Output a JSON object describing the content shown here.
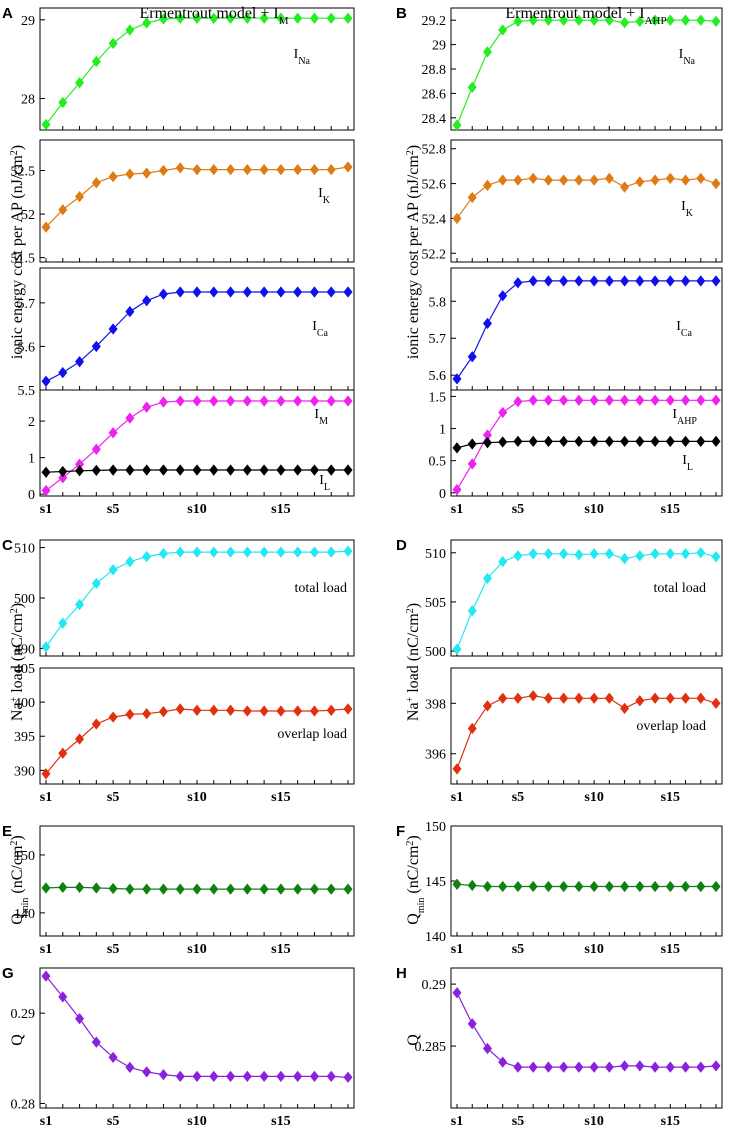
{
  "figure": {
    "titles": {
      "left": {
        "main": "Ermentrout model + I",
        "sub": "M"
      },
      "right": {
        "main": "Ermentrout model + I",
        "sub": "AHP"
      }
    },
    "ylabels": {
      "energy": {
        "parts": [
          {
            "t": "ionic energy cost per AP (nJ/cm"
          },
          {
            "t": "2",
            "sup": true
          },
          {
            "t": ")"
          }
        ]
      },
      "naload": {
        "parts": [
          {
            "t": "Na"
          },
          {
            "t": "+",
            "sup": true
          },
          {
            "t": " load (nC/cm"
          },
          {
            "t": "2",
            "sup": true
          },
          {
            "t": ")"
          }
        ]
      },
      "qmin": {
        "parts": [
          {
            "t": "Q"
          },
          {
            "t": "min",
            "sub": true
          },
          {
            "t": " (nC/cm"
          },
          {
            "t": "2",
            "sup": true
          },
          {
            "t": ")"
          }
        ]
      },
      "q": {
        "parts": [
          {
            "t": "Q"
          }
        ]
      }
    }
  },
  "chart_data": [
    {
      "id": "A1",
      "panel_letter": "A",
      "type": "line",
      "ylim": [
        27.6,
        29.15
      ],
      "yticks": [
        28,
        29
      ],
      "series": [
        {
          "name": "I_Na",
          "label": "I",
          "sub": "Na",
          "color": "#22ee22",
          "values": [
            27.67,
            27.95,
            28.2,
            28.47,
            28.7,
            28.87,
            28.96,
            29.01,
            29.02,
            29.02,
            29.02,
            29.02,
            29.02,
            29.02,
            29.02,
            29.02,
            29.02,
            29.02,
            29.02
          ]
        }
      ]
    },
    {
      "id": "A2",
      "type": "line",
      "ylim": [
        51.45,
        52.85
      ],
      "yticks": [
        51.5,
        52,
        52.5
      ],
      "series": [
        {
          "name": "I_K",
          "label": "I",
          "sub": "K",
          "color": "#e07a14",
          "values": [
            51.85,
            52.05,
            52.2,
            52.36,
            52.43,
            52.46,
            52.47,
            52.5,
            52.53,
            52.51,
            52.51,
            52.51,
            52.51,
            52.51,
            52.51,
            52.51,
            52.51,
            52.51,
            52.54
          ]
        }
      ]
    },
    {
      "id": "A3",
      "type": "line",
      "ylim": [
        5.5,
        5.78
      ],
      "yticks": [
        5.5,
        5.6,
        5.7
      ],
      "xticklabels": [],
      "series": [
        {
          "name": "I_Ca",
          "label": "I",
          "sub": "Ca",
          "color": "#1010ee",
          "values": [
            5.52,
            5.54,
            5.565,
            5.6,
            5.64,
            5.68,
            5.705,
            5.72,
            5.725,
            5.725,
            5.725,
            5.725,
            5.725,
            5.725,
            5.725,
            5.725,
            5.725,
            5.725,
            5.725
          ]
        }
      ]
    },
    {
      "id": "A4",
      "type": "line",
      "ylim": [
        -0.05,
        2.85
      ],
      "yticks": [
        0,
        1,
        2
      ],
      "xticklabels": [
        "s1",
        "s5",
        "s10",
        "s15"
      ],
      "series": [
        {
          "name": "I_M",
          "label": "I",
          "sub": "M",
          "color": "#ee22ee",
          "values": [
            0.1,
            0.45,
            0.82,
            1.23,
            1.68,
            2.08,
            2.38,
            2.52,
            2.55,
            2.55,
            2.55,
            2.55,
            2.55,
            2.55,
            2.55,
            2.55,
            2.55,
            2.55,
            2.55
          ]
        },
        {
          "name": "I_L",
          "label": "I",
          "sub": "L",
          "color": "#000000",
          "values": [
            0.6,
            0.62,
            0.64,
            0.65,
            0.66,
            0.66,
            0.66,
            0.66,
            0.66,
            0.66,
            0.66,
            0.66,
            0.66,
            0.66,
            0.66,
            0.66,
            0.66,
            0.66,
            0.66
          ]
        }
      ]
    },
    {
      "id": "B1",
      "panel_letter": "B",
      "type": "line",
      "ylim": [
        28.3,
        29.3
      ],
      "yticks": [
        28.4,
        28.6,
        28.8,
        29,
        29.2
      ],
      "series": [
        {
          "name": "I_Na",
          "label": "I",
          "sub": "Na",
          "color": "#22ee22",
          "values": [
            28.34,
            28.65,
            28.94,
            29.12,
            29.19,
            29.2,
            29.2,
            29.2,
            29.2,
            29.2,
            29.2,
            29.18,
            29.19,
            29.2,
            29.2,
            29.2,
            29.2,
            29.19
          ]
        }
      ]
    },
    {
      "id": "B2",
      "type": "line",
      "ylim": [
        52.15,
        52.85
      ],
      "yticks": [
        52.2,
        52.4,
        52.6,
        52.8
      ],
      "series": [
        {
          "name": "I_K",
          "label": "I",
          "sub": "K",
          "color": "#e07a14",
          "values": [
            52.4,
            52.52,
            52.59,
            52.62,
            52.62,
            52.63,
            52.62,
            52.62,
            52.62,
            52.62,
            52.63,
            52.58,
            52.61,
            52.62,
            52.63,
            52.62,
            52.63,
            52.6
          ]
        }
      ]
    },
    {
      "id": "B3",
      "type": "line",
      "ylim": [
        5.56,
        5.89
      ],
      "yticks": [
        5.6,
        5.7,
        5.8
      ],
      "series": [
        {
          "name": "I_Ca",
          "label": "I",
          "sub": "Ca",
          "color": "#1010ee",
          "values": [
            5.59,
            5.65,
            5.74,
            5.815,
            5.85,
            5.855,
            5.855,
            5.855,
            5.855,
            5.855,
            5.855,
            5.855,
            5.855,
            5.855,
            5.855,
            5.855,
            5.855,
            5.855
          ]
        }
      ]
    },
    {
      "id": "B4",
      "type": "line",
      "ylim": [
        -0.05,
        1.6
      ],
      "yticks": [
        0,
        0.5,
        1,
        1.5
      ],
      "xticklabels": [
        "s1",
        "s5",
        "s10",
        "s15"
      ],
      "series": [
        {
          "name": "I_AHP",
          "label": "I",
          "sub": "AHP",
          "color": "#ee22ee",
          "values": [
            0.05,
            0.45,
            0.9,
            1.25,
            1.42,
            1.44,
            1.44,
            1.44,
            1.44,
            1.44,
            1.44,
            1.44,
            1.44,
            1.44,
            1.44,
            1.44,
            1.44,
            1.44
          ]
        },
        {
          "name": "I_L",
          "label": "I",
          "sub": "L",
          "color": "#000000",
          "values": [
            0.7,
            0.76,
            0.78,
            0.79,
            0.8,
            0.8,
            0.8,
            0.8,
            0.8,
            0.8,
            0.8,
            0.8,
            0.8,
            0.8,
            0.8,
            0.8,
            0.8,
            0.8
          ]
        }
      ]
    },
    {
      "id": "C1",
      "panel_letter": "C",
      "type": "line",
      "ylim": [
        488.5,
        511.5
      ],
      "yticks": [
        490,
        500,
        510
      ],
      "series": [
        {
          "name": "total load",
          "label": "total load",
          "color": "#22e8f0",
          "values": [
            490.3,
            495,
            498.7,
            502.9,
            505.6,
            507.2,
            508.2,
            508.8,
            509.1,
            509.1,
            509.1,
            509.1,
            509.1,
            509.1,
            509.1,
            509.1,
            509.1,
            509.1,
            509.3
          ]
        }
      ]
    },
    {
      "id": "C2",
      "type": "line",
      "ylim": [
        388,
        405
      ],
      "yticks": [
        390,
        395,
        400,
        405
      ],
      "xticklabels": [
        "s1",
        "s5",
        "s10",
        "s15"
      ],
      "series": [
        {
          "name": "overlap load",
          "label": "overlap load",
          "color": "#e03010",
          "values": [
            389.5,
            392.5,
            394.6,
            396.8,
            397.8,
            398.2,
            398.3,
            398.6,
            399,
            398.8,
            398.8,
            398.8,
            398.7,
            398.7,
            398.7,
            398.7,
            398.7,
            398.8,
            399
          ]
        }
      ]
    },
    {
      "id": "D1",
      "panel_letter": "D",
      "type": "line",
      "ylim": [
        499.5,
        511.3
      ],
      "yticks": [
        500,
        505,
        510
      ],
      "series": [
        {
          "name": "total load",
          "label": "total load",
          "color": "#22e8f0",
          "values": [
            500.2,
            504.1,
            507.4,
            509.1,
            509.7,
            509.9,
            509.9,
            509.9,
            509.8,
            509.9,
            509.9,
            509.4,
            509.7,
            509.9,
            509.9,
            509.9,
            510,
            509.6
          ]
        }
      ]
    },
    {
      "id": "D2",
      "type": "line",
      "ylim": [
        394.8,
        399.4
      ],
      "yticks": [
        396,
        398
      ],
      "xticklabels": [
        "s1",
        "s5",
        "s10",
        "s15"
      ],
      "series": [
        {
          "name": "overlap load",
          "label": "overlap load",
          "color": "#e03010",
          "values": [
            395.4,
            397,
            397.9,
            398.2,
            398.2,
            398.3,
            398.2,
            398.2,
            398.2,
            398.2,
            398.2,
            397.8,
            398.1,
            398.2,
            398.2,
            398.2,
            398.2,
            398
          ]
        }
      ]
    },
    {
      "id": "E",
      "panel_letter": "E",
      "type": "line",
      "ylim": [
        136,
        155
      ],
      "yticks": [
        140,
        150
      ],
      "xticklabels": [
        "s1",
        "s5",
        "s10",
        "s15"
      ],
      "series": [
        {
          "name": "Qmin",
          "color": "#108010",
          "values": [
            144.3,
            144.4,
            144.4,
            144.3,
            144.2,
            144.1,
            144.1,
            144.1,
            144.1,
            144.1,
            144.1,
            144.1,
            144.1,
            144.1,
            144.1,
            144.1,
            144.1,
            144.1,
            144.1
          ]
        }
      ]
    },
    {
      "id": "F",
      "panel_letter": "F",
      "type": "line",
      "ylim": [
        140,
        150
      ],
      "yticks": [
        140,
        145,
        150
      ],
      "xticklabels": [
        "s1",
        "s5",
        "s10",
        "s15"
      ],
      "series": [
        {
          "name": "Qmin",
          "color": "#108010",
          "values": [
            144.7,
            144.6,
            144.5,
            144.5,
            144.5,
            144.5,
            144.5,
            144.5,
            144.5,
            144.5,
            144.5,
            144.5,
            144.5,
            144.5,
            144.5,
            144.5,
            144.5,
            144.5
          ]
        }
      ]
    },
    {
      "id": "G",
      "panel_letter": "G",
      "type": "line",
      "ylim": [
        0.2795,
        0.295
      ],
      "yticks": [
        0.28,
        0.29
      ],
      "xticklabels": [
        "s1",
        "s5",
        "s10",
        "s15"
      ],
      "series": [
        {
          "name": "Q",
          "color": "#8822dd",
          "values": [
            0.2941,
            0.2918,
            0.2894,
            0.2868,
            0.2851,
            0.284,
            0.2835,
            0.2832,
            0.283,
            0.283,
            0.283,
            0.283,
            0.283,
            0.283,
            0.283,
            0.283,
            0.283,
            0.283,
            0.2829
          ]
        }
      ]
    },
    {
      "id": "H",
      "panel_letter": "H",
      "type": "line",
      "ylim": [
        0.28,
        0.2913
      ],
      "yticks": [
        0.285,
        0.29
      ],
      "xticklabels": [
        "s1",
        "s5",
        "s10",
        "s15"
      ],
      "series": [
        {
          "name": "Q",
          "color": "#8822dd",
          "values": [
            0.2893,
            0.2868,
            0.2848,
            0.2837,
            0.2833,
            0.2833,
            0.2833,
            0.2833,
            0.2833,
            0.2833,
            0.2833,
            0.2834,
            0.2834,
            0.2833,
            0.2833,
            0.2833,
            0.2833,
            0.2834
          ]
        }
      ]
    }
  ]
}
